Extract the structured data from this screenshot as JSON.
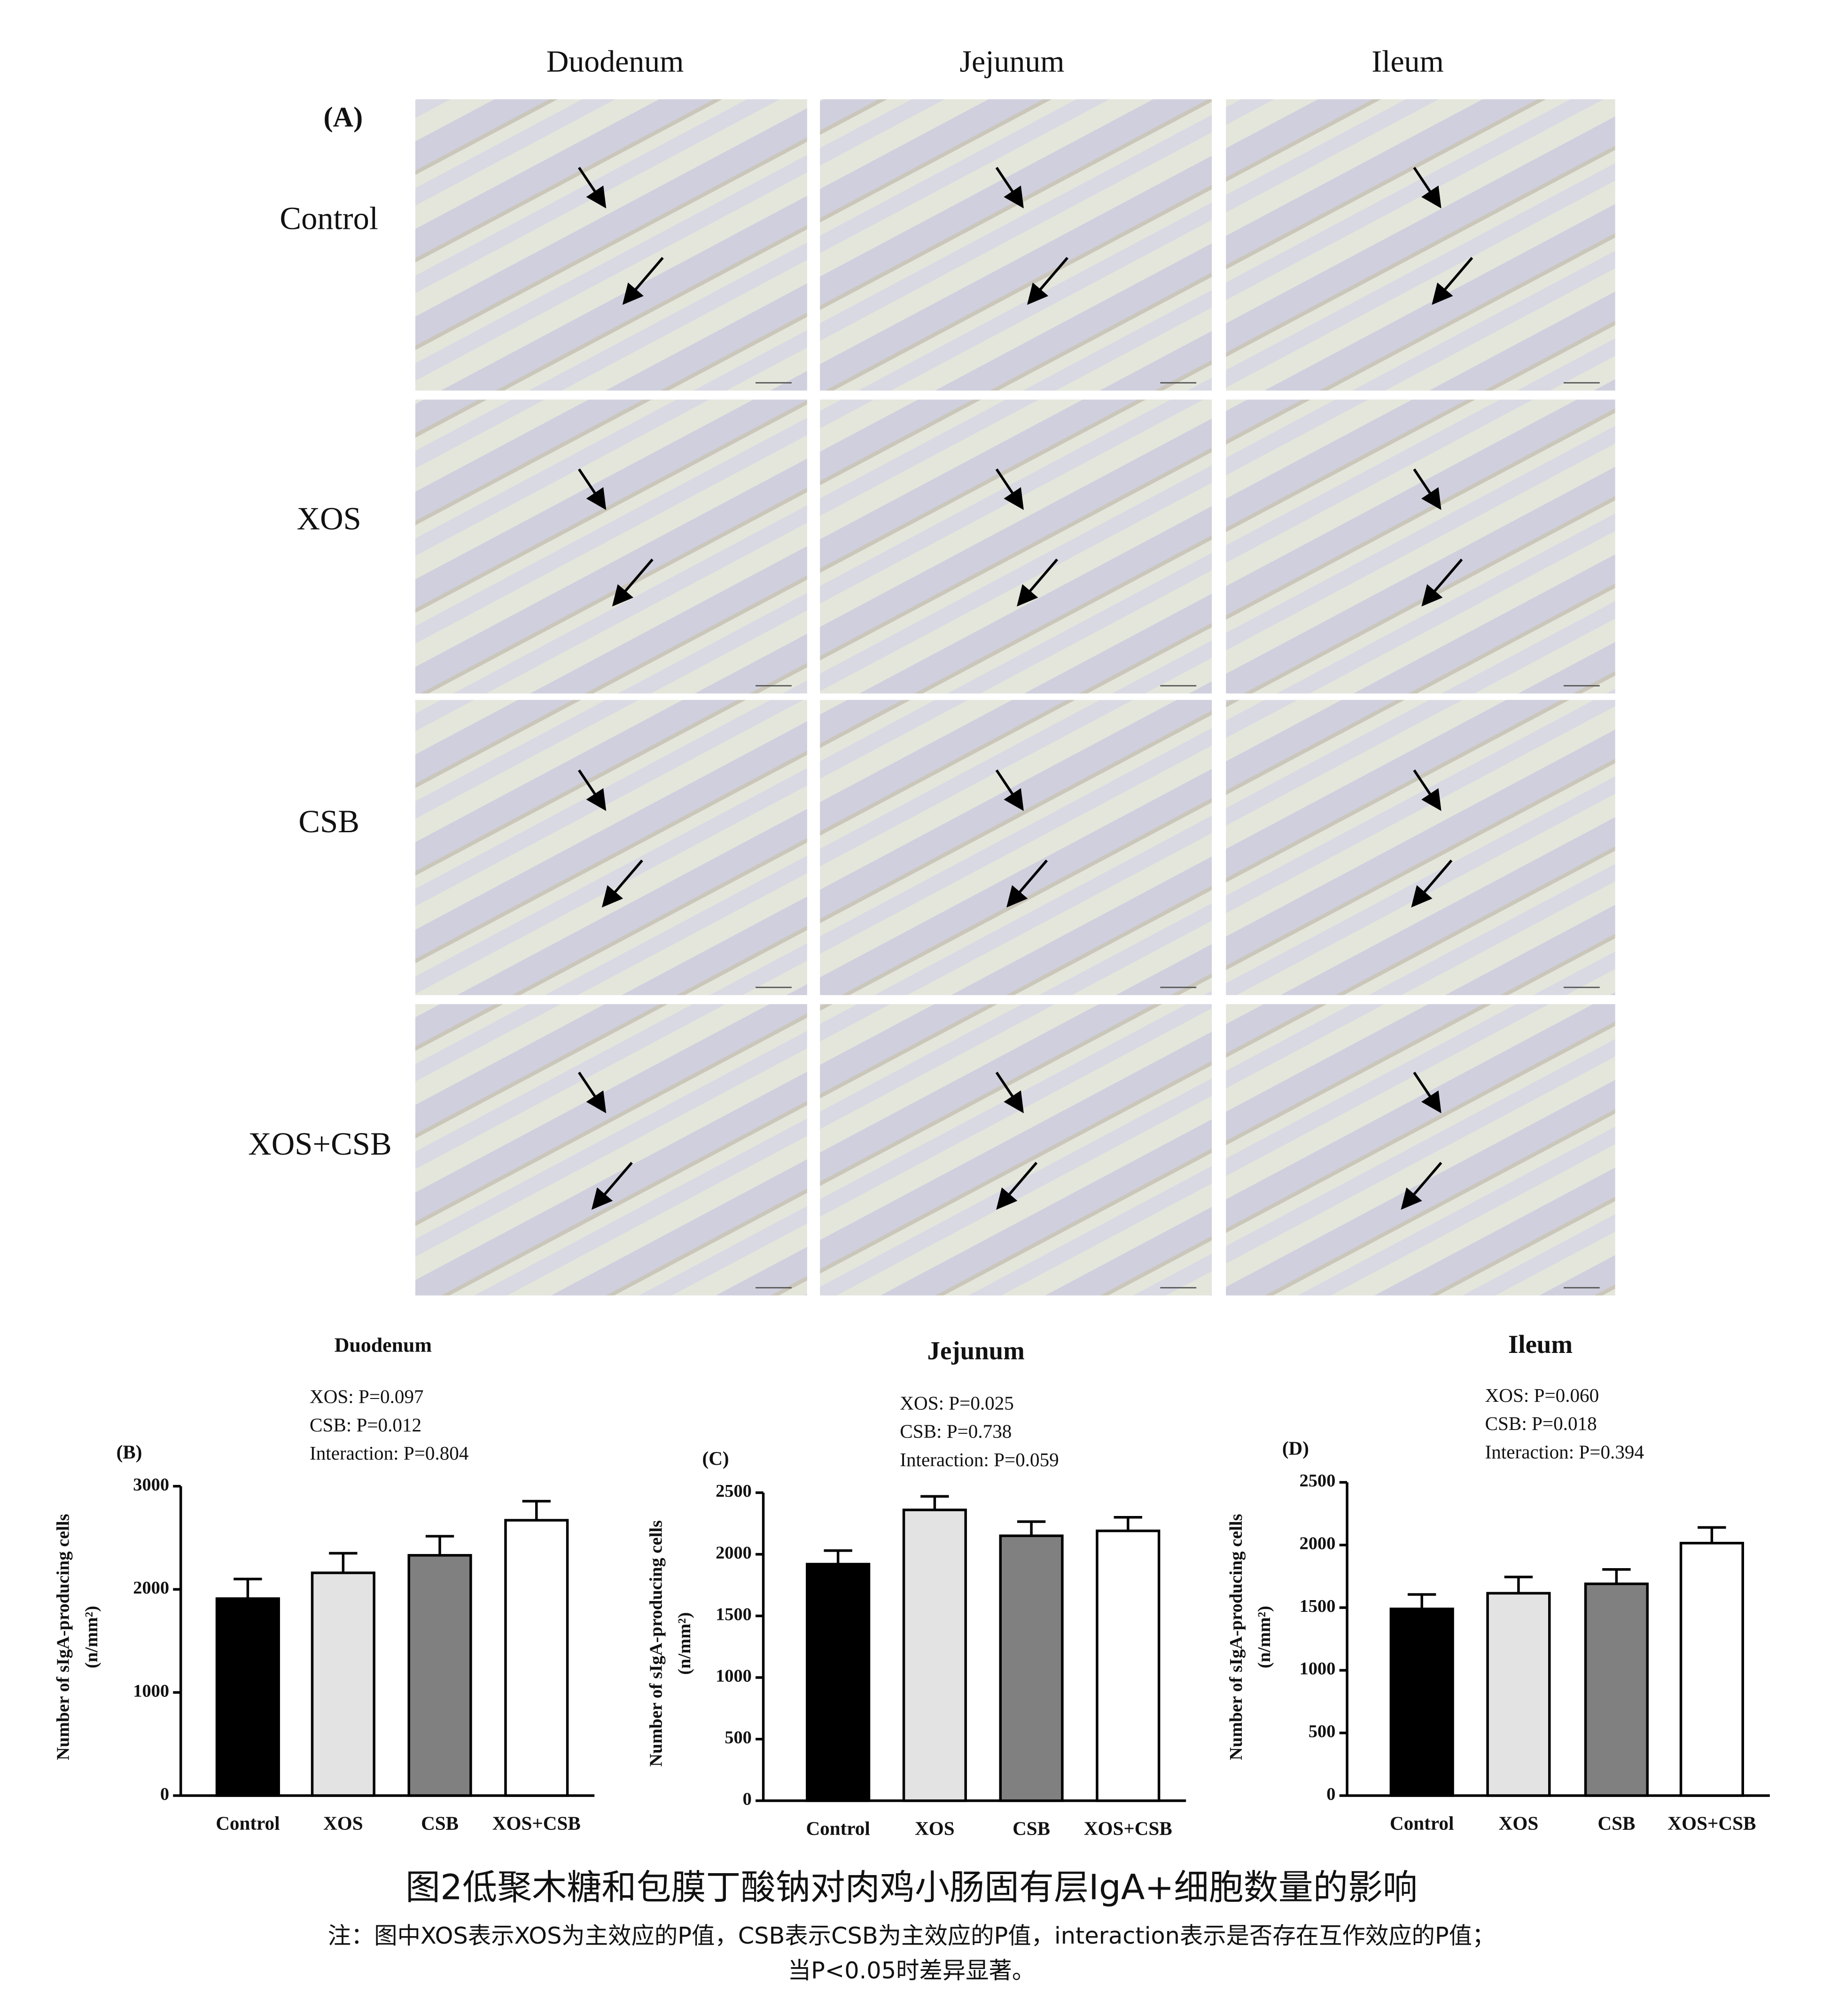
{
  "micrographs": {
    "panel_label": "(A)",
    "columns": [
      "Duodenum",
      "Jejunum",
      "Ileum"
    ],
    "rows": [
      "Control",
      "XOS",
      "CSB",
      "XOS+CSB"
    ]
  },
  "chart_data": [
    {
      "type": "bar",
      "panel_label": "(B)",
      "title": "Duodenum",
      "annotations": [
        "XOS: P=0.097",
        "CSB: P=0.012",
        "Interaction: P=0.804"
      ],
      "y_label": [
        "Number of sIgA-producing cells",
        "(n/mm²)"
      ],
      "categories": [
        "Control",
        "XOS",
        "CSB",
        "XOS+CSB"
      ],
      "values": [
        1910,
        2160,
        2330,
        2670
      ],
      "errors": [
        190,
        190,
        185,
        185
      ],
      "colors": [
        "#000000",
        "#e3e3e3",
        "#808080",
        "#ffffff"
      ],
      "ylim": [
        0,
        3000
      ],
      "yticks": [
        0,
        1000,
        2000,
        3000
      ]
    },
    {
      "type": "bar",
      "panel_label": "(C)",
      "title": "Jejunum",
      "annotations": [
        "XOS: P=0.025",
        "CSB: P=0.738",
        "Interaction: P=0.059"
      ],
      "y_label": [
        "Number of sIgA-producing cells",
        "(n/mm²)"
      ],
      "categories": [
        "Control",
        "XOS",
        "CSB",
        "XOS+CSB"
      ],
      "values": [
        1920,
        2360,
        2150,
        2190
      ],
      "errors": [
        110,
        110,
        115,
        110
      ],
      "colors": [
        "#000000",
        "#e3e3e3",
        "#808080",
        "#ffffff"
      ],
      "ylim": [
        0,
        2500
      ],
      "yticks": [
        0,
        500,
        1000,
        1500,
        2000,
        2500
      ]
    },
    {
      "type": "bar",
      "panel_label": "(D)",
      "title": "Ileum",
      "annotations": [
        "XOS: P=0.060",
        "CSB: P=0.018",
        "Interaction: P=0.394"
      ],
      "y_label": [
        "Number of sIgA-producing cells",
        "(n/mm²)"
      ],
      "categories": [
        "Control",
        "XOS",
        "CSB",
        "XOS+CSB"
      ],
      "values": [
        1490,
        1615,
        1690,
        2015
      ],
      "errors": [
        115,
        130,
        115,
        125
      ],
      "colors": [
        "#000000",
        "#e3e3e3",
        "#808080",
        "#ffffff"
      ],
      "ylim": [
        0,
        2500
      ],
      "yticks": [
        0,
        500,
        1000,
        1500,
        2000,
        2500
      ]
    }
  ],
  "caption": {
    "title": "图2低聚木糖和包膜丁酸钠对肉鸡小肠固有层IgA+细胞数量的影响",
    "notes": [
      "注：图中XOS表示XOS为主效应的P值，CSB表示CSB为主效应的P值，interaction表示是否存在互作效应的P值；",
      "当P<0.05时差异显著。"
    ]
  }
}
